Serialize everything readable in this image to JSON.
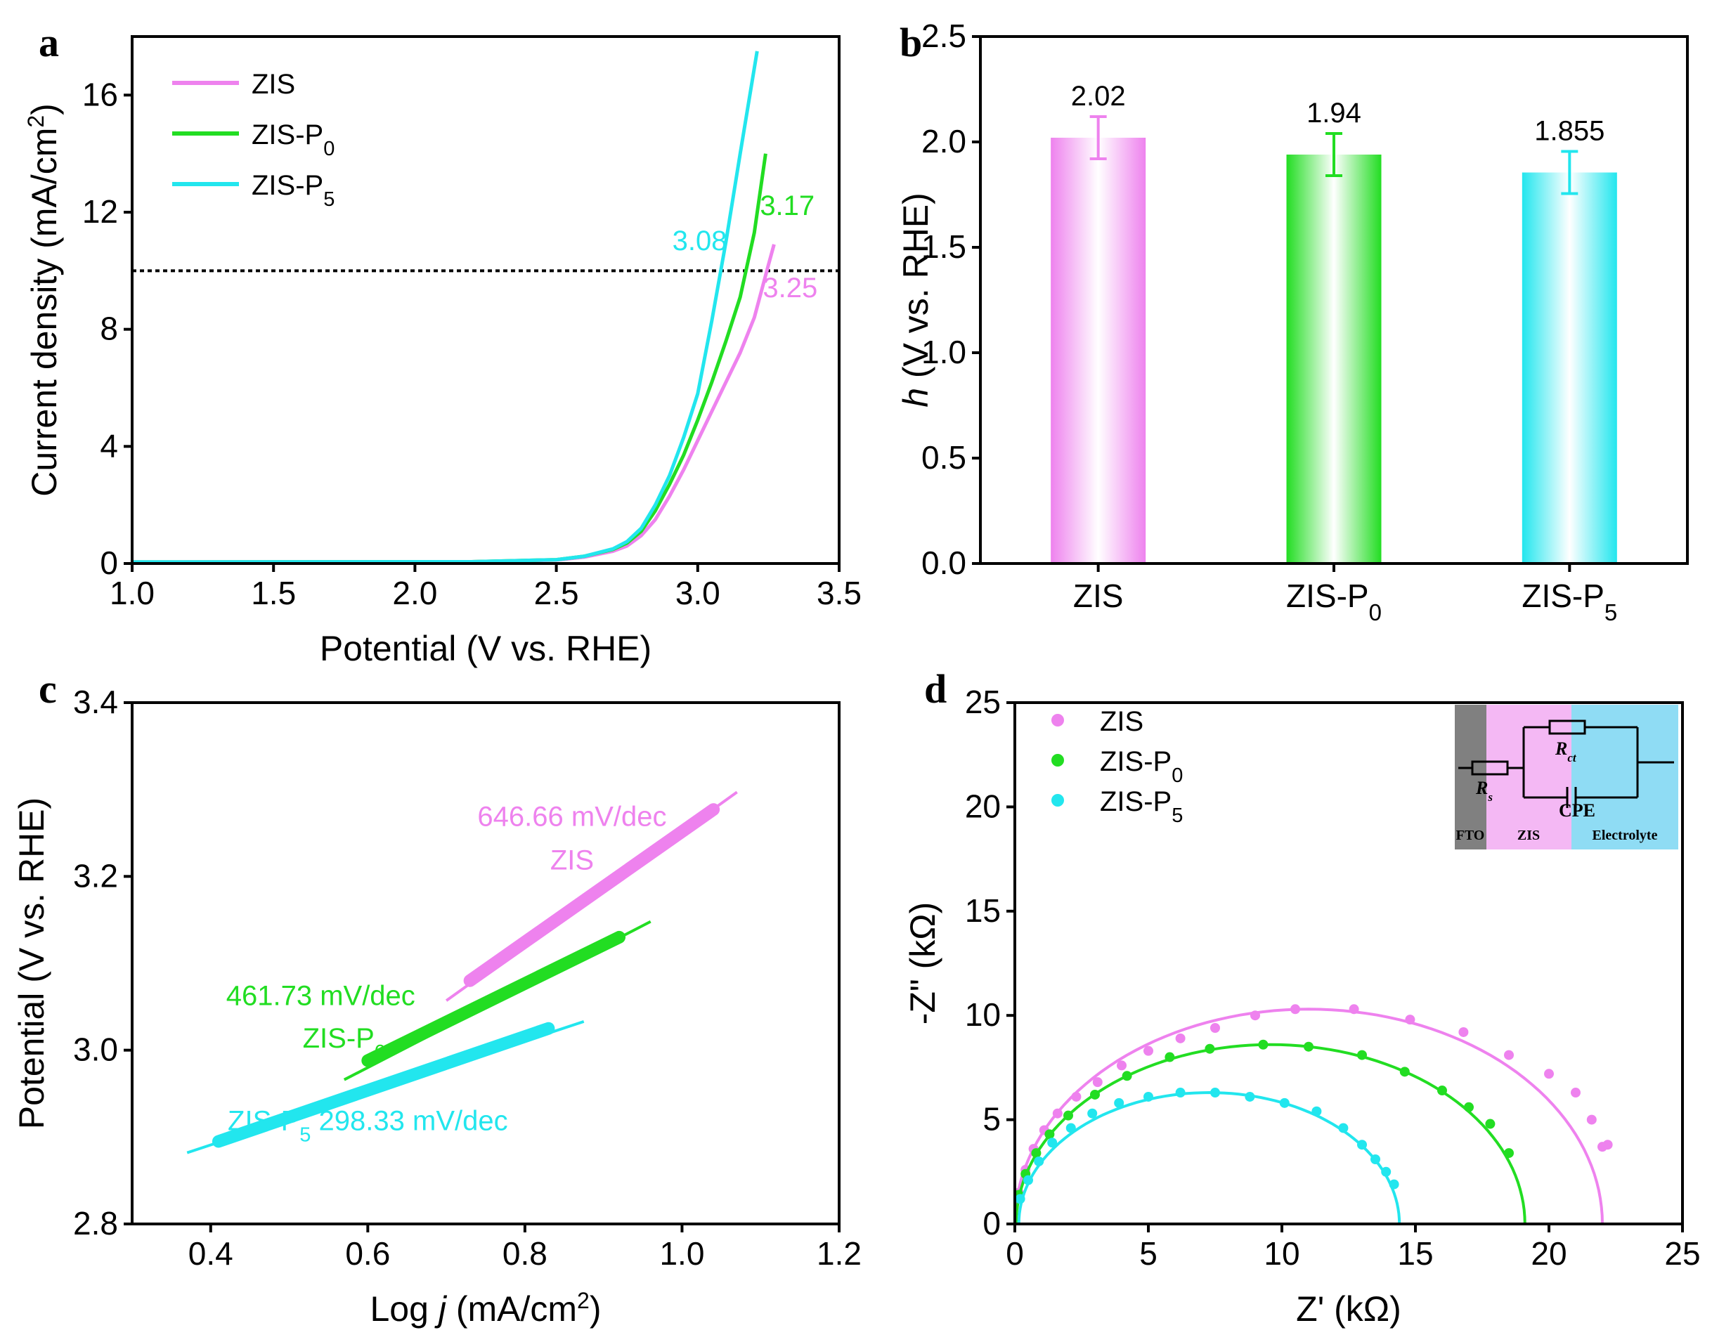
{
  "figure": {
    "panels": [
      "a",
      "b",
      "c",
      "d"
    ]
  },
  "colors": {
    "ZIS": "#ee82ee",
    "ZIS-P0": "#22dd22",
    "ZIS-P5": "#22e6ee",
    "axis": "#000000",
    "fto": "#808080",
    "zis_bg": "#f4b8f4",
    "electrolyte_bg": "#8fdcf4"
  },
  "chart_data": [
    {
      "panel": "a",
      "type": "line",
      "xlabel": "Potential (V vs. RHE)",
      "ylabel_main": "Current density (mA/cm",
      "ylabel_sup": "2",
      "ylabel_end": ")",
      "xlim": [
        1.0,
        3.5
      ],
      "ylim": [
        0,
        18
      ],
      "xticks": [
        1.0,
        1.5,
        2.0,
        2.5,
        3.0,
        3.5
      ],
      "xtick_labels": [
        "1.0",
        "1.5",
        "2.0",
        "2.5",
        "3.0",
        "3.5"
      ],
      "yticks": [
        0,
        4,
        8,
        12,
        16
      ],
      "ytick_labels": [
        "0",
        "4",
        "8",
        "12",
        "16"
      ],
      "reference_line_y": 10,
      "legend": [
        {
          "base": "ZIS",
          "sub": "",
          "key": "ZIS"
        },
        {
          "base": "ZIS-P",
          "sub": "0",
          "key": "ZIS-P0"
        },
        {
          "base": "ZIS-P",
          "sub": "5",
          "key": "ZIS-P5"
        }
      ],
      "series": [
        {
          "name": "ZIS",
          "x": [
            1.0,
            2.2,
            2.5,
            2.6,
            2.7,
            2.75,
            2.8,
            2.85,
            2.9,
            2.95,
            3.0,
            3.05,
            3.1,
            3.15,
            3.2,
            3.25,
            3.27
          ],
          "y": [
            0.05,
            0.06,
            0.12,
            0.22,
            0.42,
            0.6,
            0.95,
            1.5,
            2.3,
            3.2,
            4.2,
            5.2,
            6.2,
            7.2,
            8.4,
            10.2,
            10.9
          ]
        },
        {
          "name": "ZIS-P0",
          "x": [
            1.0,
            2.2,
            2.5,
            2.6,
            2.7,
            2.75,
            2.8,
            2.85,
            2.9,
            2.95,
            3.0,
            3.05,
            3.1,
            3.15,
            3.2,
            3.24
          ],
          "y": [
            0.05,
            0.06,
            0.13,
            0.25,
            0.48,
            0.7,
            1.1,
            1.8,
            2.7,
            3.7,
            4.9,
            6.2,
            7.6,
            9.1,
            11.3,
            14.0
          ]
        },
        {
          "name": "ZIS-P5",
          "x": [
            1.0,
            2.2,
            2.5,
            2.6,
            2.7,
            2.75,
            2.8,
            2.85,
            2.9,
            2.95,
            3.0,
            3.05,
            3.1,
            3.15,
            3.21
          ],
          "y": [
            0.05,
            0.06,
            0.13,
            0.25,
            0.5,
            0.75,
            1.2,
            2.0,
            3.0,
            4.3,
            5.8,
            8.3,
            11.0,
            14.0,
            17.5
          ]
        }
      ],
      "annotations": [
        {
          "text": "3.08",
          "x": 2.91,
          "y": 10.7,
          "key": "ZIS-P5"
        },
        {
          "text": "3.17",
          "x": 3.22,
          "y": 11.9,
          "key": "ZIS-P0"
        },
        {
          "text": "3.25",
          "x": 3.23,
          "y": 9.1,
          "key": "ZIS"
        }
      ]
    },
    {
      "panel": "b",
      "type": "bar",
      "ylabel_italic": "h",
      "ylabel_rest": " (V vs. RHE)",
      "ylim": [
        0,
        2.5
      ],
      "yticks": [
        0.0,
        0.5,
        1.0,
        1.5,
        2.0,
        2.5
      ],
      "ytick_labels": [
        "0.0",
        "0.5",
        "1.0",
        "1.5",
        "2.0",
        "2.5"
      ],
      "categories": [
        {
          "base": "ZIS",
          "sub": "",
          "key": "ZIS"
        },
        {
          "base": "ZIS-P",
          "sub": "0",
          "key": "ZIS-P0"
        },
        {
          "base": "ZIS-P",
          "sub": "5",
          "key": "ZIS-P5"
        }
      ],
      "values": [
        2.02,
        1.94,
        1.855
      ],
      "errors": [
        0.1,
        0.1,
        0.1
      ],
      "value_labels": [
        "2.02",
        "1.94",
        "1.855"
      ]
    },
    {
      "panel": "c",
      "type": "line",
      "xlabel_pre": "Log ",
      "xlabel_italic": "j",
      "xlabel_post": " (mA/cm",
      "xlabel_sup": "2",
      "xlabel_end": ")",
      "ylabel": "Potential (V vs. RHE)",
      "xlim": [
        0.3,
        1.2
      ],
      "ylim": [
        2.8,
        3.4
      ],
      "xticks": [
        0.4,
        0.6,
        0.8,
        1.0,
        1.2
      ],
      "xtick_labels": [
        "0.4",
        "0.6",
        "0.8",
        "1.0",
        "1.2"
      ],
      "yticks": [
        2.8,
        3.0,
        3.2,
        3.4
      ],
      "ytick_labels": [
        "2.8",
        "3.0",
        "3.2",
        "3.4"
      ],
      "series": [
        {
          "name": "ZIS",
          "fit_x": [
            0.7,
            1.07
          ],
          "fit_y": [
            3.057,
            3.297
          ],
          "data_x": [
            0.73,
            1.04
          ],
          "data_y": [
            3.08,
            3.277
          ]
        },
        {
          "name": "ZIS-P0",
          "fit_x": [
            0.57,
            0.96
          ],
          "fit_y": [
            2.966,
            3.148
          ],
          "data_x": [
            0.6,
            0.92
          ],
          "data_y": [
            2.988,
            3.13
          ]
        },
        {
          "name": "ZIS-P5",
          "fit_x": [
            0.37,
            0.875
          ],
          "fit_y": [
            2.882,
            3.033
          ],
          "data_x": [
            0.41,
            0.83
          ],
          "data_y": [
            2.895,
            3.025
          ]
        }
      ],
      "annotations": [
        {
          "text": "646.66 mV/dec",
          "x": 0.86,
          "y": 3.258,
          "key": "ZIS"
        },
        {
          "text": "ZIS",
          "x": 0.86,
          "y": 3.208,
          "key": "ZIS"
        },
        {
          "text": "461.73 mV/dec",
          "x": 0.54,
          "y": 3.052,
          "key": "ZIS-P0"
        },
        {
          "text": "ZIS-P0",
          "x": 0.57,
          "y": 3.003,
          "key": "ZIS-P0"
        },
        {
          "text": "ZIS-P5 298.33 mV/dec",
          "x": 0.6,
          "y": 2.908,
          "key": "ZIS-P5"
        }
      ]
    },
    {
      "panel": "d",
      "type": "scatter",
      "xlabel": "Z' (kΩ)",
      "ylabel": "-Z\" (kΩ)",
      "xlim": [
        0,
        25
      ],
      "ylim": [
        0,
        25
      ],
      "xticks": [
        0,
        5,
        10,
        15,
        20,
        25
      ],
      "xtick_labels": [
        "0",
        "5",
        "10",
        "15",
        "20",
        "25"
      ],
      "yticks": [
        0,
        5,
        10,
        15,
        20,
        25
      ],
      "ytick_labels": [
        "0",
        "5",
        "10",
        "15",
        "20",
        "25"
      ],
      "legend": [
        {
          "base": "ZIS",
          "sub": "",
          "key": "ZIS"
        },
        {
          "base": "ZIS-P",
          "sub": "0",
          "key": "ZIS-P0"
        },
        {
          "base": "ZIS-P",
          "sub": "5",
          "key": "ZIS-P5"
        }
      ],
      "series": [
        {
          "name": "ZIS",
          "fit": {
            "xmin": 0.0,
            "xmax": 22.0,
            "rx": 11.0,
            "ry": 10.3
          },
          "x": [
            0.15,
            0.4,
            0.7,
            1.1,
            1.6,
            2.3,
            3.1,
            4.0,
            5.0,
            6.2,
            7.5,
            9.0,
            10.5,
            12.7,
            14.8,
            16.8,
            18.5,
            20.0,
            21.0,
            21.6,
            22.0,
            22.2
          ],
          "y": [
            1.5,
            2.6,
            3.6,
            4.5,
            5.3,
            6.1,
            6.8,
            7.6,
            8.3,
            8.9,
            9.4,
            10.0,
            10.3,
            10.3,
            9.8,
            9.2,
            8.1,
            7.2,
            6.3,
            5.0,
            3.7,
            3.8
          ]
        },
        {
          "name": "ZIS-P0",
          "fit": {
            "xmin": 0.05,
            "xmax": 19.1,
            "rx": 9.525,
            "ry": 8.6
          },
          "x": [
            0.15,
            0.4,
            0.8,
            1.3,
            2.0,
            3.0,
            4.2,
            5.8,
            7.3,
            9.3,
            11.0,
            13.0,
            14.6,
            16.0,
            17.0,
            17.8,
            18.5
          ],
          "y": [
            1.4,
            2.4,
            3.4,
            4.3,
            5.2,
            6.2,
            7.1,
            8.0,
            8.4,
            8.6,
            8.5,
            8.1,
            7.3,
            6.4,
            5.6,
            4.8,
            3.4
          ]
        },
        {
          "name": "ZIS-P5",
          "fit": {
            "xmin": 0.15,
            "xmax": 14.4,
            "rx": 7.125,
            "ry": 6.3
          },
          "x": [
            0.2,
            0.5,
            0.9,
            1.4,
            2.1,
            2.9,
            3.9,
            5.0,
            6.2,
            7.5,
            8.8,
            10.1,
            11.3,
            12.3,
            13.0,
            13.5,
            13.9,
            14.2
          ],
          "y": [
            1.2,
            2.1,
            3.0,
            3.9,
            4.6,
            5.3,
            5.8,
            6.1,
            6.3,
            6.3,
            6.1,
            5.8,
            5.4,
            4.6,
            3.8,
            3.1,
            2.5,
            1.9
          ]
        }
      ],
      "inset": {
        "labels": {
          "FTO": "FTO",
          "ZIS": "ZIS",
          "Electrolyte": "Electrolyte"
        },
        "rs_main": "R",
        "rs_sub": "s",
        "rct_main": "R",
        "rct_sub": "ct",
        "cpe": "CPE"
      }
    }
  ]
}
